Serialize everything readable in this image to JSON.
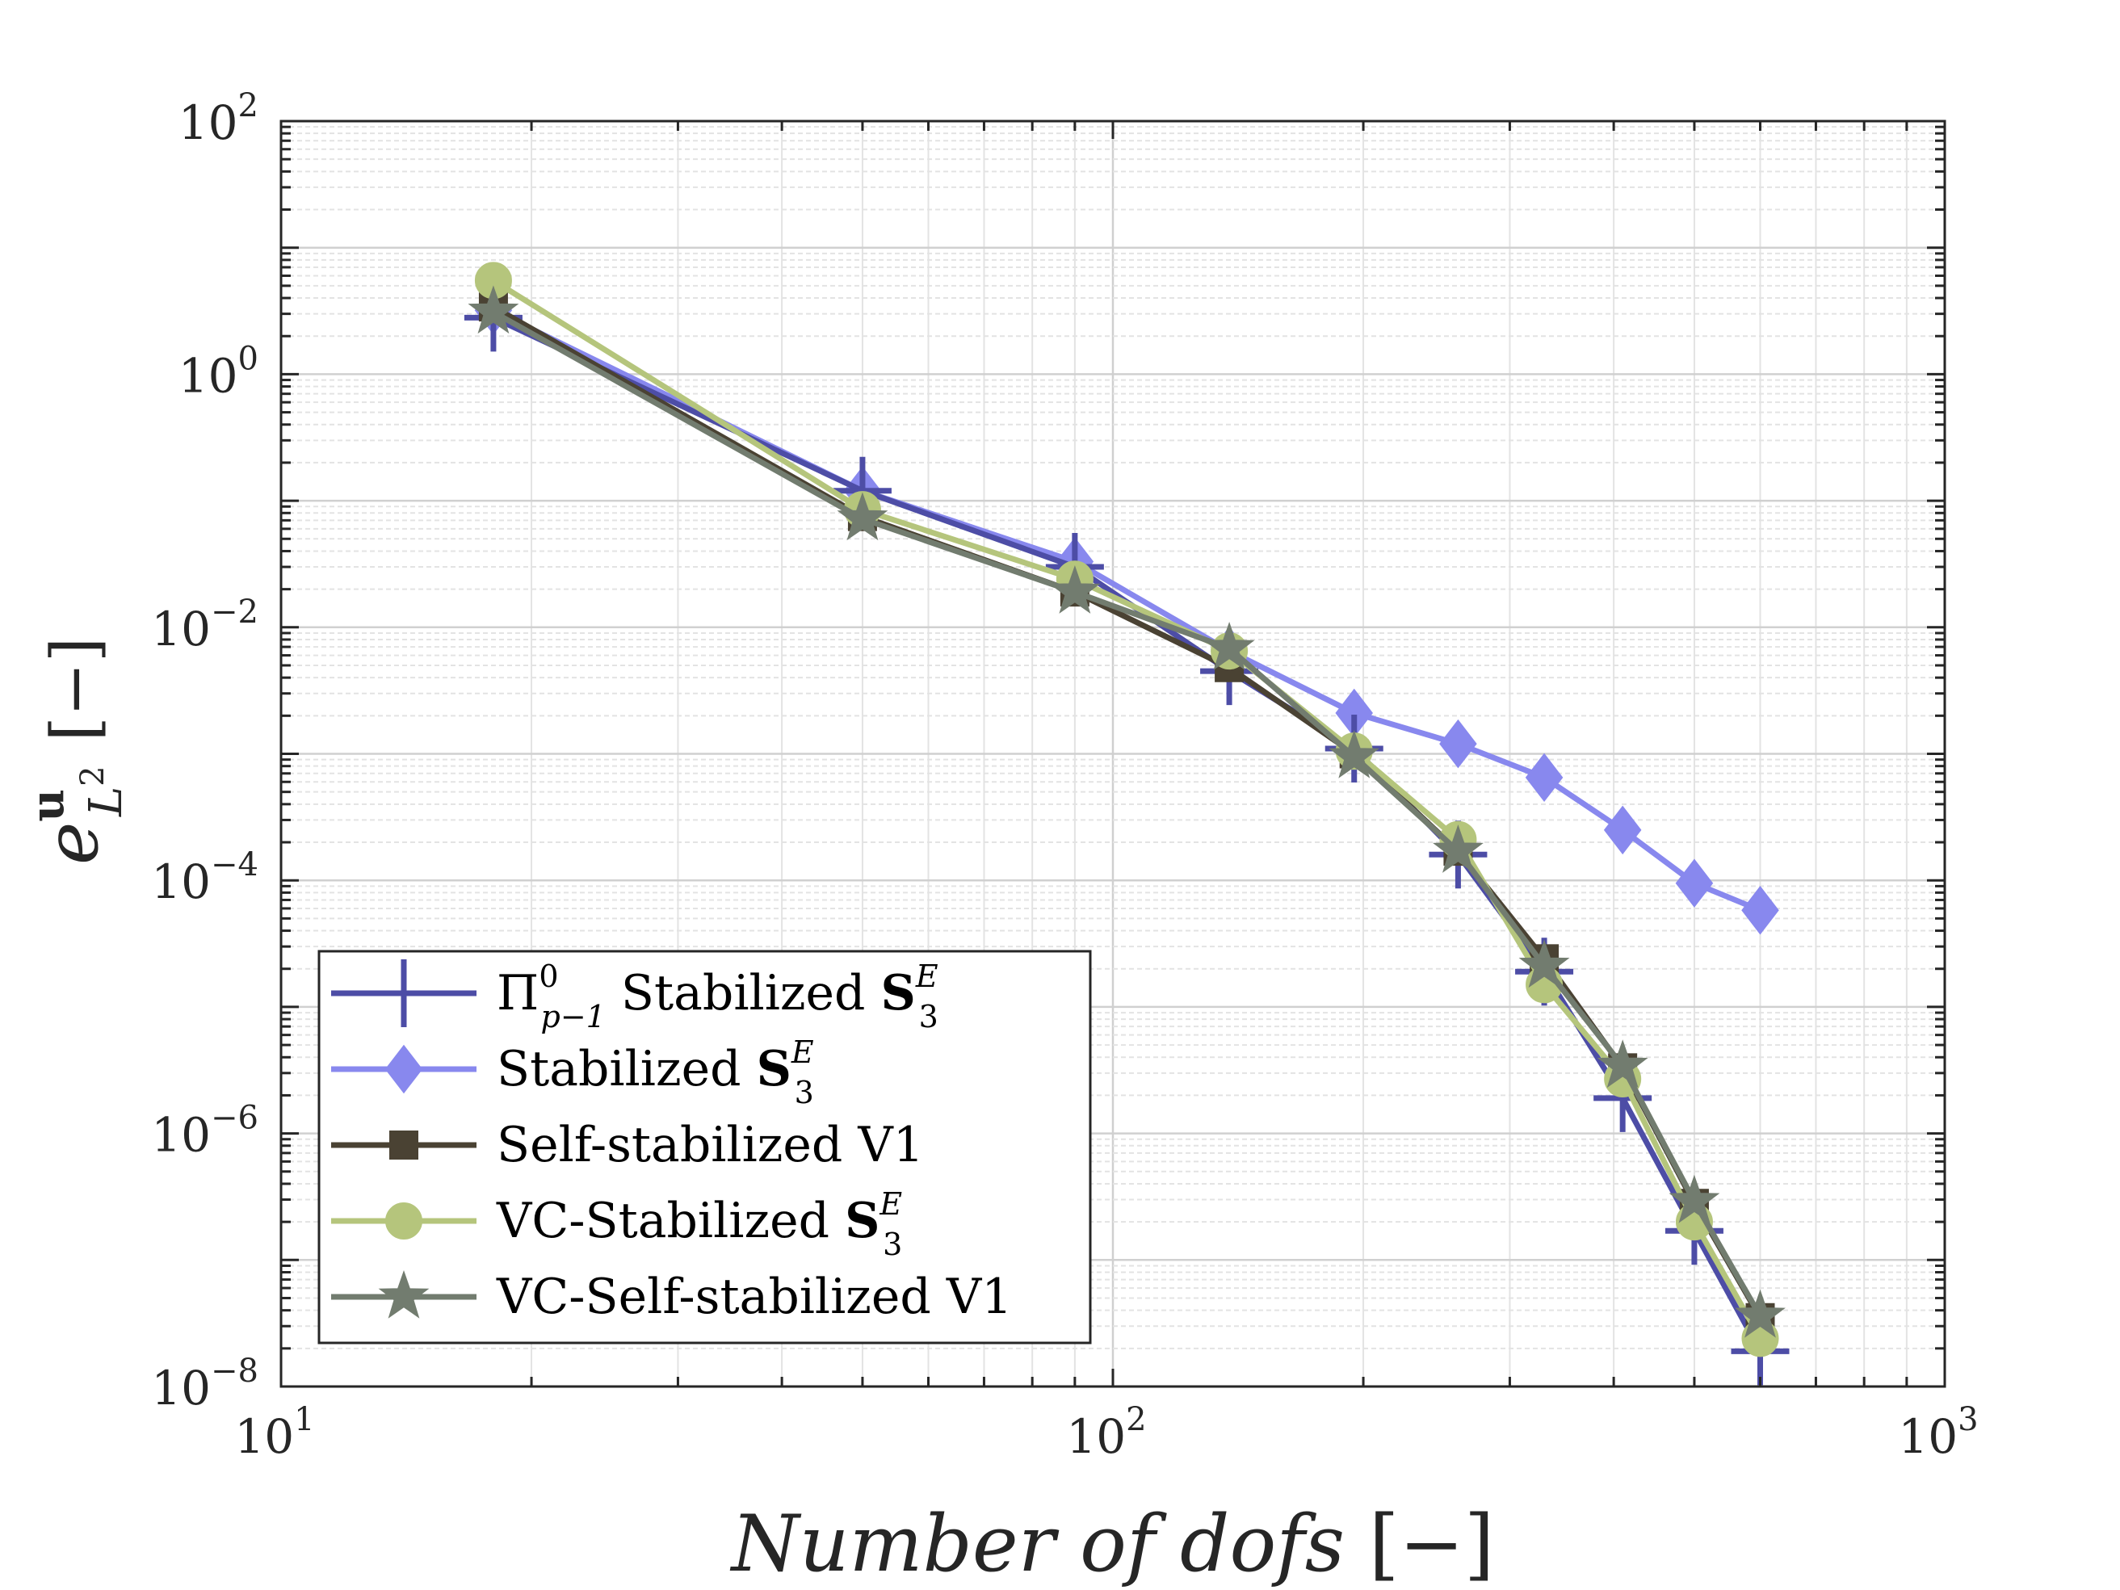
{
  "chart_data": {
    "type": "line",
    "xscale": "log",
    "yscale": "log",
    "xlim": [
      10,
      1000
    ],
    "ylim": [
      1e-08,
      100
    ],
    "grid": true,
    "legend_position": "bottom-left",
    "xlabel": {
      "main": "Number of dofs",
      "unit": "[−]"
    },
    "ylabel": {
      "base": "e",
      "superscript": "u",
      "subscript": "L",
      "subscript_power": "2",
      "unit": "[−]"
    },
    "x_ticks": [
      {
        "value": 10,
        "base": "10",
        "exp": "1"
      },
      {
        "value": 100,
        "base": "10",
        "exp": "2"
      },
      {
        "value": 1000,
        "base": "10",
        "exp": "3"
      }
    ],
    "y_ticks": [
      {
        "value": 100,
        "base": "10",
        "exp": "2"
      },
      {
        "value": 1,
        "base": "10",
        "exp": "0"
      },
      {
        "value": 0.01,
        "base": "10",
        "exp": "−2"
      },
      {
        "value": 0.0001,
        "base": "10",
        "exp": "−4"
      },
      {
        "value": 1e-06,
        "base": "10",
        "exp": "−6"
      },
      {
        "value": 1e-08,
        "base": "10",
        "exp": "−8"
      }
    ],
    "series": [
      {
        "name": "Π⁰ p−1 Stabilized S₃ᴱ",
        "label_parts": {
          "pre": "Π",
          "pre_sup": "0",
          "pre_sub": "p−1",
          "text": " Stabilized ",
          "bold": "S",
          "sub": "3",
          "sup": "E"
        },
        "color": "#4d4da6",
        "marker": "plus",
        "x": [
          18,
          50,
          90,
          138,
          195,
          260,
          330,
          410,
          500,
          600
        ],
        "y": [
          2.8,
          0.12,
          0.03,
          0.0045,
          0.0011,
          0.00016,
          1.9e-05,
          1.9e-06,
          1.7e-07,
          1.9e-08
        ]
      },
      {
        "name": "Stabilized S₃ᴱ",
        "label_parts": {
          "pre": "",
          "text": "Stabilized ",
          "bold": "S",
          "sub": "3",
          "sup": "E"
        },
        "color": "#8888ee",
        "marker": "diamond",
        "x": [
          18,
          50,
          90,
          138,
          195,
          260,
          330,
          410,
          500,
          600
        ],
        "y": [
          3.2,
          0.12,
          0.033,
          0.0065,
          0.0021,
          0.0012,
          0.00065,
          0.00025,
          9.5e-05,
          5.8e-05
        ]
      },
      {
        "name": "Self-stabilized V1",
        "label_parts": {
          "pre": "",
          "text": "Self-stabilized V1"
        },
        "color": "#4a4233",
        "marker": "square",
        "x": [
          18,
          50,
          90,
          138,
          195,
          260,
          330,
          410,
          500,
          600
        ],
        "y": [
          3.4,
          0.075,
          0.019,
          0.0048,
          0.001,
          0.00017,
          2.4e-05,
          3.3e-06,
          2.8e-07,
          3.5e-08
        ]
      },
      {
        "name": "VC-Stabilized S₃ᴱ",
        "label_parts": {
          "pre": "",
          "text": "VC-Stabilized ",
          "bold": "S",
          "sub": "3",
          "sup": "E"
        },
        "color": "#b5c57c",
        "marker": "circle",
        "x": [
          18,
          50,
          90,
          138,
          195,
          260,
          330,
          410,
          500,
          600
        ],
        "y": [
          5.5,
          0.085,
          0.024,
          0.0065,
          0.00105,
          0.00021,
          1.5e-05,
          2.7e-06,
          2e-07,
          2.4e-08
        ]
      },
      {
        "name": "VC-Self-stabilized V1",
        "label_parts": {
          "pre": "",
          "text": "VC-Self-stabilized V1"
        },
        "color": "#727c6f",
        "marker": "star",
        "x": [
          18,
          50,
          90,
          138,
          195,
          260,
          330,
          410,
          500,
          600
        ],
        "y": [
          3.1,
          0.072,
          0.019,
          0.0068,
          0.00095,
          0.00017,
          2.1e-05,
          3.4e-06,
          2.9e-07,
          3.6e-08
        ]
      }
    ]
  }
}
